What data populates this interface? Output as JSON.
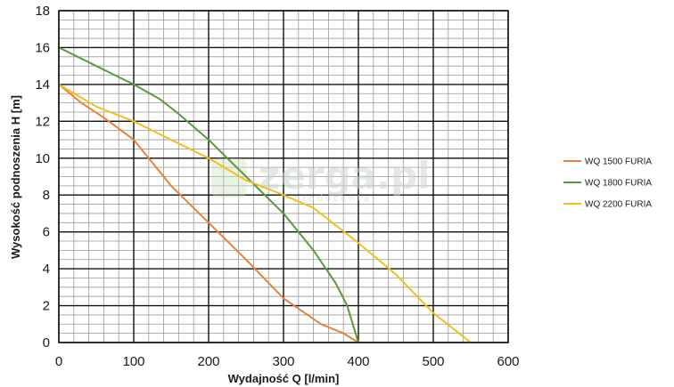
{
  "watermark": {
    "text": "zerga.pl",
    "sub": "producenta"
  },
  "chart_data": {
    "type": "line",
    "title": "",
    "xlabel": "Wydajność Q [l/min]",
    "ylabel": "Wysokość podnoszenia H [m]",
    "xlim": [
      0,
      600
    ],
    "ylim": [
      0,
      18
    ],
    "xticks": [
      0,
      100,
      200,
      300,
      400,
      500,
      600
    ],
    "yticks": [
      0,
      2,
      4,
      6,
      8,
      10,
      12,
      14,
      16,
      18
    ],
    "grid": true,
    "legend_position": "right",
    "series": [
      {
        "name": "WQ 1500 FURIA",
        "color": "#e8823a",
        "points": [
          [
            0,
            14
          ],
          [
            30,
            13
          ],
          [
            60,
            12.2
          ],
          [
            100,
            11
          ],
          [
            130,
            9.5
          ],
          [
            150,
            8.5
          ],
          [
            200,
            6.5
          ],
          [
            250,
            4.5
          ],
          [
            300,
            2.4
          ],
          [
            350,
            1
          ],
          [
            380,
            0.5
          ],
          [
            400,
            0
          ]
        ]
      },
      {
        "name": "WQ 1800 FURIA",
        "color": "#5a9a3c",
        "points": [
          [
            0,
            16
          ],
          [
            50,
            15
          ],
          [
            100,
            14
          ],
          [
            135,
            13.2
          ],
          [
            160,
            12.4
          ],
          [
            200,
            11
          ],
          [
            250,
            9
          ],
          [
            300,
            7
          ],
          [
            340,
            5
          ],
          [
            370,
            3.2
          ],
          [
            385,
            2
          ],
          [
            400,
            0
          ]
        ]
      },
      {
        "name": "WQ 2200 FURIA",
        "color": "#f2c01e",
        "points": [
          [
            0,
            14
          ],
          [
            50,
            12.8
          ],
          [
            100,
            12
          ],
          [
            150,
            11
          ],
          [
            200,
            10
          ],
          [
            250,
            8.8
          ],
          [
            300,
            8
          ],
          [
            340,
            7.3
          ],
          [
            400,
            5.4
          ],
          [
            450,
            3.7
          ],
          [
            500,
            1.6
          ],
          [
            550,
            0
          ]
        ]
      }
    ]
  }
}
